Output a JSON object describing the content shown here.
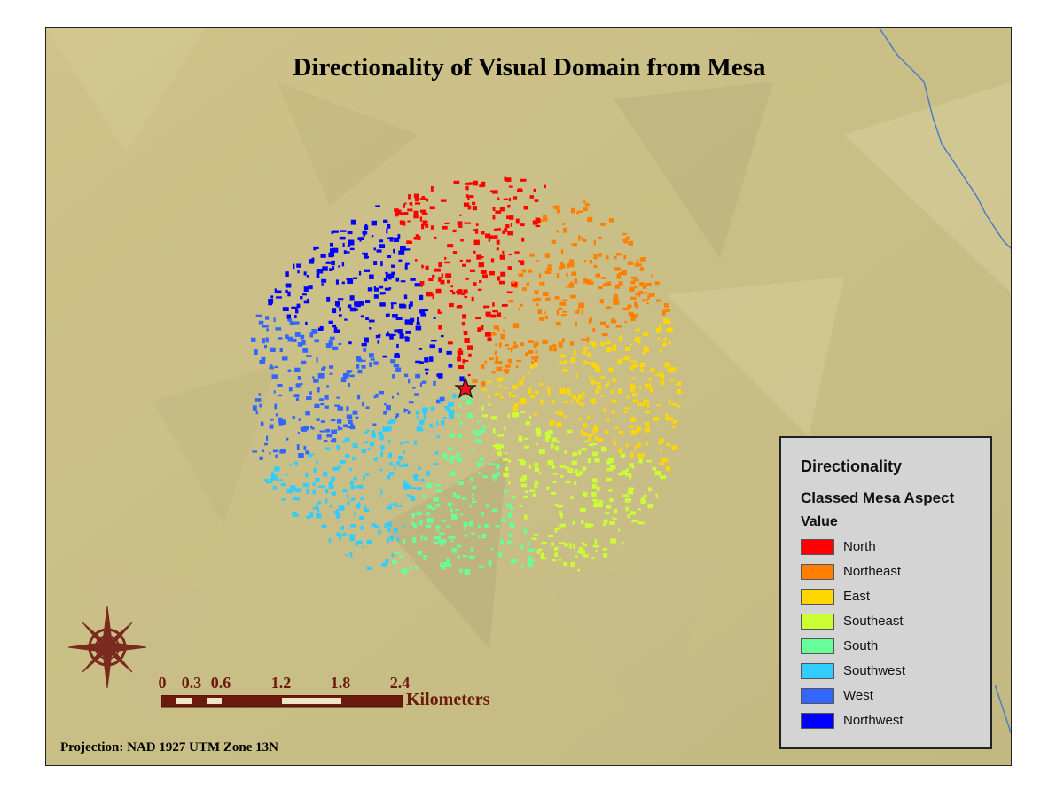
{
  "map": {
    "title": "Directionality of Visual Domain from Mesa",
    "projection": "Projection: NAD 1927 UTM Zone 13N",
    "observer_marker": "red-star"
  },
  "legend": {
    "title": "Directionality",
    "layer": "Classed Mesa Aspect",
    "field": "Value",
    "items": [
      {
        "label": "North",
        "color": "#ff0000"
      },
      {
        "label": "Northeast",
        "color": "#ff7f00"
      },
      {
        "label": "East",
        "color": "#ffd700"
      },
      {
        "label": "Southeast",
        "color": "#ccff33"
      },
      {
        "label": "South",
        "color": "#66ff99"
      },
      {
        "label": "Southwest",
        "color": "#33ccff"
      },
      {
        "label": "West",
        "color": "#3366ff"
      },
      {
        "label": "Northwest",
        "color": "#0000ff"
      }
    ]
  },
  "scale_bar": {
    "ticks": [
      "0",
      "0.3",
      "0.6",
      "1.2",
      "1.8",
      "2.4"
    ],
    "unit": "Kilometers"
  },
  "compass": {
    "icon": "compass-rose-icon"
  }
}
